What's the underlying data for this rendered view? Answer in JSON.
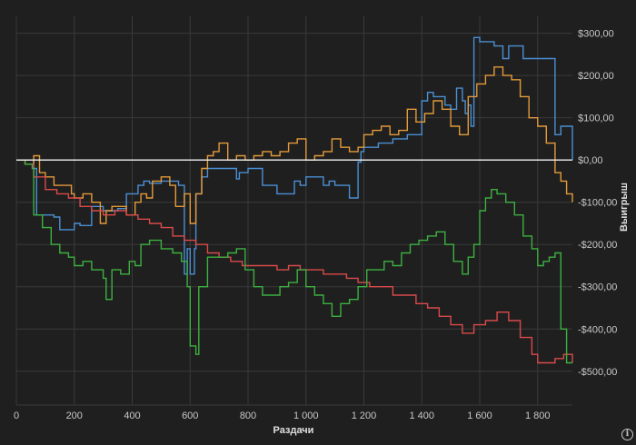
{
  "chart_data": {
    "type": "line",
    "xlabel": "Раздачи",
    "ylabel": "Выигрыш",
    "xlim": [
      0,
      1920
    ],
    "ylim": [
      -580,
      340
    ],
    "x_ticks": [
      0,
      200,
      400,
      600,
      800,
      1000,
      1200,
      1400,
      1600,
      1800
    ],
    "x_tick_labels": [
      "0",
      "200",
      "400",
      "600",
      "800",
      "1 000",
      "1 200",
      "1 400",
      "1 600",
      "1 800"
    ],
    "y_ticks": [
      300,
      200,
      100,
      0,
      -100,
      -200,
      -300,
      -400,
      -500
    ],
    "y_tick_labels": [
      "$300,00",
      "$200,00",
      "$100,00",
      "$0,00",
      "-$100,00",
      "-$200,00",
      "-$300,00",
      "-$400,00",
      "-$500,00"
    ],
    "zero_line": 0,
    "grid": true,
    "series": [
      {
        "color": "#4a8fd4",
        "x": [
          0,
          60,
          70,
          130,
          150,
          200,
          220,
          260,
          300,
          350,
          380,
          420,
          440,
          460,
          500,
          560,
          580,
          590,
          600,
          615,
          620,
          640,
          660,
          700,
          760,
          770,
          800,
          850,
          900,
          960,
          980,
          1000,
          1060,
          1080,
          1100,
          1150,
          1180,
          1190,
          1200,
          1250,
          1300,
          1350,
          1380,
          1400,
          1420,
          1440,
          1480,
          1500,
          1520,
          1540,
          1550,
          1560,
          1570,
          1580,
          1600,
          1650,
          1680,
          1700,
          1750,
          1780,
          1800,
          1830,
          1850,
          1860,
          1880,
          1900,
          1920
        ],
        "y": [
          0,
          -20,
          -130,
          -135,
          -165,
          -150,
          -155,
          -110,
          -120,
          -115,
          -80,
          -60,
          -50,
          -55,
          -50,
          -60,
          -270,
          -210,
          -270,
          -210,
          -80,
          -40,
          -20,
          -20,
          -45,
          -30,
          -20,
          -60,
          -80,
          -50,
          -60,
          -40,
          -60,
          -50,
          -60,
          -90,
          -5,
          20,
          30,
          40,
          50,
          60,
          60,
          140,
          160,
          150,
          130,
          120,
          170,
          140,
          110,
          130,
          80,
          290,
          280,
          270,
          240,
          270,
          240,
          240,
          240,
          240,
          240,
          60,
          80,
          80,
          0
        ]
      },
      {
        "color": "#e39a3a",
        "x": [
          0,
          30,
          60,
          80,
          100,
          130,
          160,
          190,
          200,
          230,
          260,
          290,
          310,
          330,
          360,
          380,
          410,
          430,
          450,
          470,
          500,
          530,
          550,
          580,
          600,
          620,
          640,
          660,
          680,
          700,
          730,
          760,
          790,
          820,
          850,
          880,
          910,
          940,
          970,
          1000,
          1030,
          1060,
          1090,
          1120,
          1150,
          1180,
          1200,
          1230,
          1260,
          1290,
          1320,
          1350,
          1380,
          1410,
          1440,
          1470,
          1500,
          1530,
          1560,
          1590,
          1620,
          1650,
          1680,
          1710,
          1740,
          1770,
          1800,
          1830,
          1860,
          1880,
          1900,
          1920
        ],
        "y": [
          0,
          -10,
          10,
          -30,
          -40,
          -60,
          -60,
          -80,
          -90,
          -80,
          -100,
          -150,
          -120,
          -110,
          -110,
          -130,
          -100,
          -80,
          -90,
          -50,
          -40,
          -60,
          -110,
          -80,
          -150,
          -80,
          -20,
          10,
          20,
          40,
          0,
          10,
          0,
          10,
          20,
          10,
          20,
          40,
          50,
          0,
          10,
          20,
          50,
          30,
          20,
          30,
          60,
          70,
          80,
          60,
          70,
          120,
          90,
          110,
          140,
          120,
          80,
          60,
          150,
          180,
          200,
          220,
          200,
          190,
          150,
          100,
          80,
          40,
          -30,
          -50,
          -80,
          -100
        ]
      },
      {
        "color": "#d94a4a",
        "x": [
          0,
          30,
          60,
          100,
          140,
          180,
          220,
          260,
          300,
          340,
          380,
          420,
          460,
          500,
          540,
          580,
          620,
          660,
          700,
          740,
          780,
          820,
          860,
          900,
          940,
          980,
          1020,
          1060,
          1100,
          1140,
          1180,
          1220,
          1260,
          1300,
          1340,
          1380,
          1420,
          1460,
          1500,
          1540,
          1580,
          1620,
          1660,
          1700,
          1740,
          1780,
          1800,
          1830,
          1860,
          1890,
          1920
        ],
        "y": [
          0,
          -10,
          -40,
          -70,
          -80,
          -90,
          -110,
          -120,
          -130,
          -120,
          -130,
          -140,
          -150,
          -160,
          -180,
          -190,
          -200,
          -220,
          -230,
          -240,
          -250,
          -250,
          -250,
          -260,
          -250,
          -260,
          -260,
          -270,
          -270,
          -280,
          -290,
          -300,
          -300,
          -320,
          -320,
          -340,
          -350,
          -370,
          -390,
          -410,
          -390,
          -380,
          -360,
          -380,
          -420,
          -460,
          -480,
          -480,
          -470,
          -460,
          -480
        ]
      },
      {
        "color": "#3cb040",
        "x": [
          0,
          30,
          55,
          60,
          90,
          120,
          150,
          180,
          200,
          230,
          260,
          300,
          310,
          330,
          360,
          390,
          410,
          430,
          460,
          500,
          540,
          570,
          590,
          600,
          620,
          630,
          660,
          700,
          730,
          760,
          790,
          820,
          850,
          880,
          910,
          940,
          970,
          1000,
          1030,
          1060,
          1090,
          1120,
          1150,
          1180,
          1210,
          1240,
          1270,
          1300,
          1330,
          1360,
          1390,
          1420,
          1450,
          1480,
          1510,
          1540,
          1560,
          1580,
          1600,
          1620,
          1640,
          1660,
          1690,
          1720,
          1750,
          1780,
          1800,
          1820,
          1840,
          1860,
          1880,
          1900,
          1920
        ],
        "y": [
          0,
          -10,
          -20,
          -130,
          -160,
          -200,
          -220,
          -230,
          -250,
          -240,
          -260,
          -280,
          -330,
          -260,
          -270,
          -240,
          -250,
          -200,
          -190,
          -210,
          -220,
          -240,
          -300,
          -440,
          -460,
          -300,
          -230,
          -230,
          -220,
          -210,
          -260,
          -300,
          -320,
          -320,
          -300,
          -290,
          -260,
          -300,
          -320,
          -340,
          -370,
          -340,
          -330,
          -300,
          -260,
          -260,
          -240,
          -250,
          -220,
          -200,
          -190,
          -180,
          -170,
          -200,
          -240,
          -270,
          -230,
          -200,
          -120,
          -90,
          -70,
          -80,
          -100,
          -130,
          -180,
          -210,
          -250,
          -240,
          -230,
          -220,
          -400,
          -480,
          -480
        ]
      }
    ]
  }
}
